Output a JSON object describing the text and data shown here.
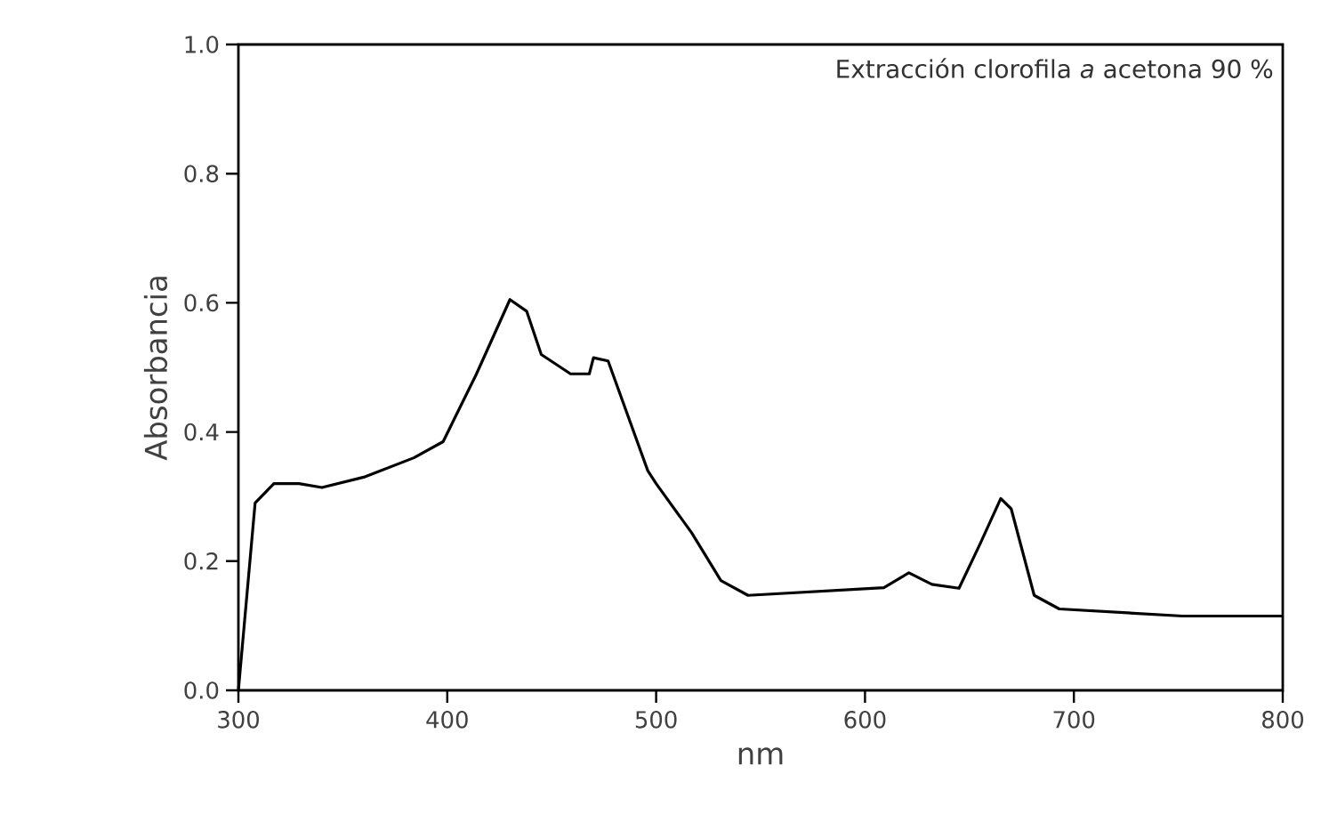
{
  "chart_data": {
    "type": "line",
    "xlabel": "nm",
    "ylabel": "Absorbancia",
    "annotations": [
      "Extracción clorofila *a* acetona 90 %"
    ],
    "xlim": [
      300,
      800
    ],
    "xticks": [
      300,
      400,
      500,
      600,
      700,
      800
    ],
    "ylim": [
      0,
      1
    ],
    "yticks": [
      {
        "value": 0,
        "label": "0.0"
      },
      {
        "value": 0.2,
        "label": "0.2"
      },
      {
        "value": 0.4,
        "label": "0.4"
      },
      {
        "value": 0.6,
        "label": "0.6"
      },
      {
        "value": 0.8,
        "label": "0.8"
      },
      {
        "value": 1,
        "label": "1.0"
      }
    ],
    "series": [
      {
        "color": "#000000",
        "x": [
          300,
          308,
          317,
          329,
          340,
          360,
          384,
          398,
          414,
          430,
          438,
          445,
          459,
          468,
          470,
          477,
          496,
          500,
          517,
          531,
          544,
          609,
          621,
          632,
          645,
          655,
          665,
          670,
          681,
          693,
          752,
          800
        ],
        "values": [
          0,
          0.29,
          0.32,
          0.32,
          0.314,
          0.33,
          0.36,
          0.385,
          0.49,
          0.605,
          0.587,
          0.52,
          0.49,
          0.49,
          0.515,
          0.51,
          0.34,
          0.32,
          0.244,
          0.17,
          0.147,
          0.159,
          0.182,
          0.164,
          0.158,
          0.226,
          0.297,
          0.281,
          0.147,
          0.126,
          0.115,
          0.115
        ]
      }
    ]
  }
}
